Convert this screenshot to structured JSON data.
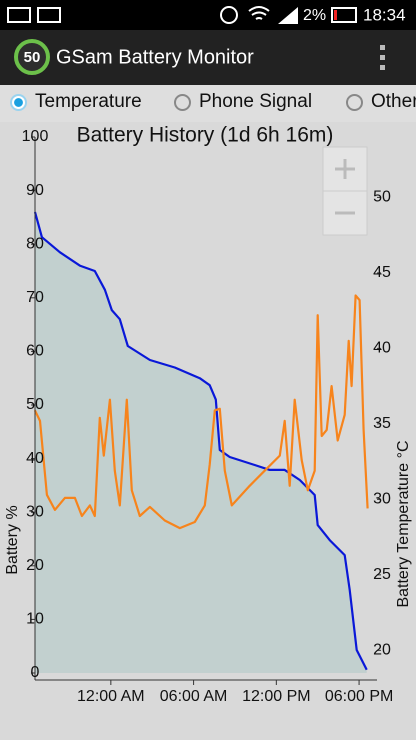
{
  "status_bar": {
    "battery": "2%",
    "time": "18:34"
  },
  "app_bar": {
    "badge": "50",
    "title": "GSam Battery Monitor"
  },
  "tabs": [
    {
      "label": "Temperature",
      "selected": true
    },
    {
      "label": "Phone Signal",
      "selected": false
    },
    {
      "label": "Other",
      "selected": false
    }
  ],
  "chart_data": {
    "type": "line",
    "title": "Battery History (1d 6h 16m)",
    "ylabel": "Battery %",
    "y2label": "Battery Temperature °C",
    "xlim": [
      -5.5,
      19.3
    ],
    "xticks": [
      {
        "value": 0,
        "label": "12:00 AM"
      },
      {
        "value": 6,
        "label": "06:00 AM"
      },
      {
        "value": 12,
        "label": "12:00 PM"
      },
      {
        "value": 18,
        "label": "06:00 PM"
      }
    ],
    "ylim": [
      0,
      100
    ],
    "yticks": [
      0,
      10,
      20,
      30,
      40,
      50,
      60,
      70,
      80,
      90,
      100
    ],
    "y2lim": [
      18.5,
      54
    ],
    "y2ticks": [
      20,
      25,
      30,
      35,
      40,
      45,
      50
    ],
    "series": [
      {
        "name": "Battery",
        "color": "#0a18d8",
        "fill": "#c2d0cf",
        "x": [
          -5.5,
          -5.0,
          -3.7,
          -2.25,
          -1.16,
          -0.43,
          0.07,
          0.65,
          1.23,
          2.83,
          4.64,
          6.45,
          7.17,
          7.61,
          7.9,
          8.62,
          10.43,
          11.52,
          12.61,
          13.7,
          14.78,
          15.0,
          15.87,
          16.96,
          17.32,
          17.83,
          18.55
        ],
        "values": [
          86,
          81.3,
          78.5,
          76,
          75,
          71.5,
          67.7,
          66,
          61,
          58.4,
          57,
          55,
          53.7,
          51,
          41.6,
          40.3,
          38.8,
          37.9,
          37.9,
          36,
          33.2,
          27.6,
          24.8,
          22,
          15.5,
          4.3,
          0.6
        ]
      },
      {
        "name": "Temperature",
        "color": "#f7841c",
        "axis": "y2",
        "x": [
          -5.51,
          -5.14,
          -4.64,
          -4.06,
          -3.33,
          -2.61,
          -2.1,
          -1.52,
          -1.16,
          -0.8,
          -0.51,
          -0.07,
          0.29,
          0.65,
          1.16,
          1.52,
          2.1,
          2.83,
          3.91,
          5.0,
          6.09,
          6.81,
          7.17,
          7.54,
          7.9,
          8.26,
          8.77,
          10.07,
          11.16,
          12.25,
          12.61,
          12.97,
          13.33,
          13.84,
          14.28,
          14.78,
          15.0,
          15.29,
          15.65,
          16.01,
          16.45,
          16.96,
          17.25,
          17.46,
          17.75,
          18.04,
          18.33,
          18.62
        ],
        "values": [
          35.9,
          35.2,
          30.3,
          29.3,
          30.1,
          30.1,
          28.9,
          29.6,
          28.9,
          35.4,
          32.9,
          36.6,
          31.9,
          29.6,
          36.6,
          30.6,
          28.9,
          29.5,
          28.6,
          28.1,
          28.5,
          29.6,
          32.3,
          35.9,
          36,
          31.9,
          29.6,
          30.9,
          31.9,
          32.9,
          35.2,
          30.9,
          36.6,
          32.6,
          30.6,
          31.9,
          42.2,
          34.2,
          34.6,
          37.5,
          33.9,
          35.6,
          40.5,
          37.5,
          43.5,
          43.2,
          34.6,
          29.4
        ]
      }
    ]
  }
}
